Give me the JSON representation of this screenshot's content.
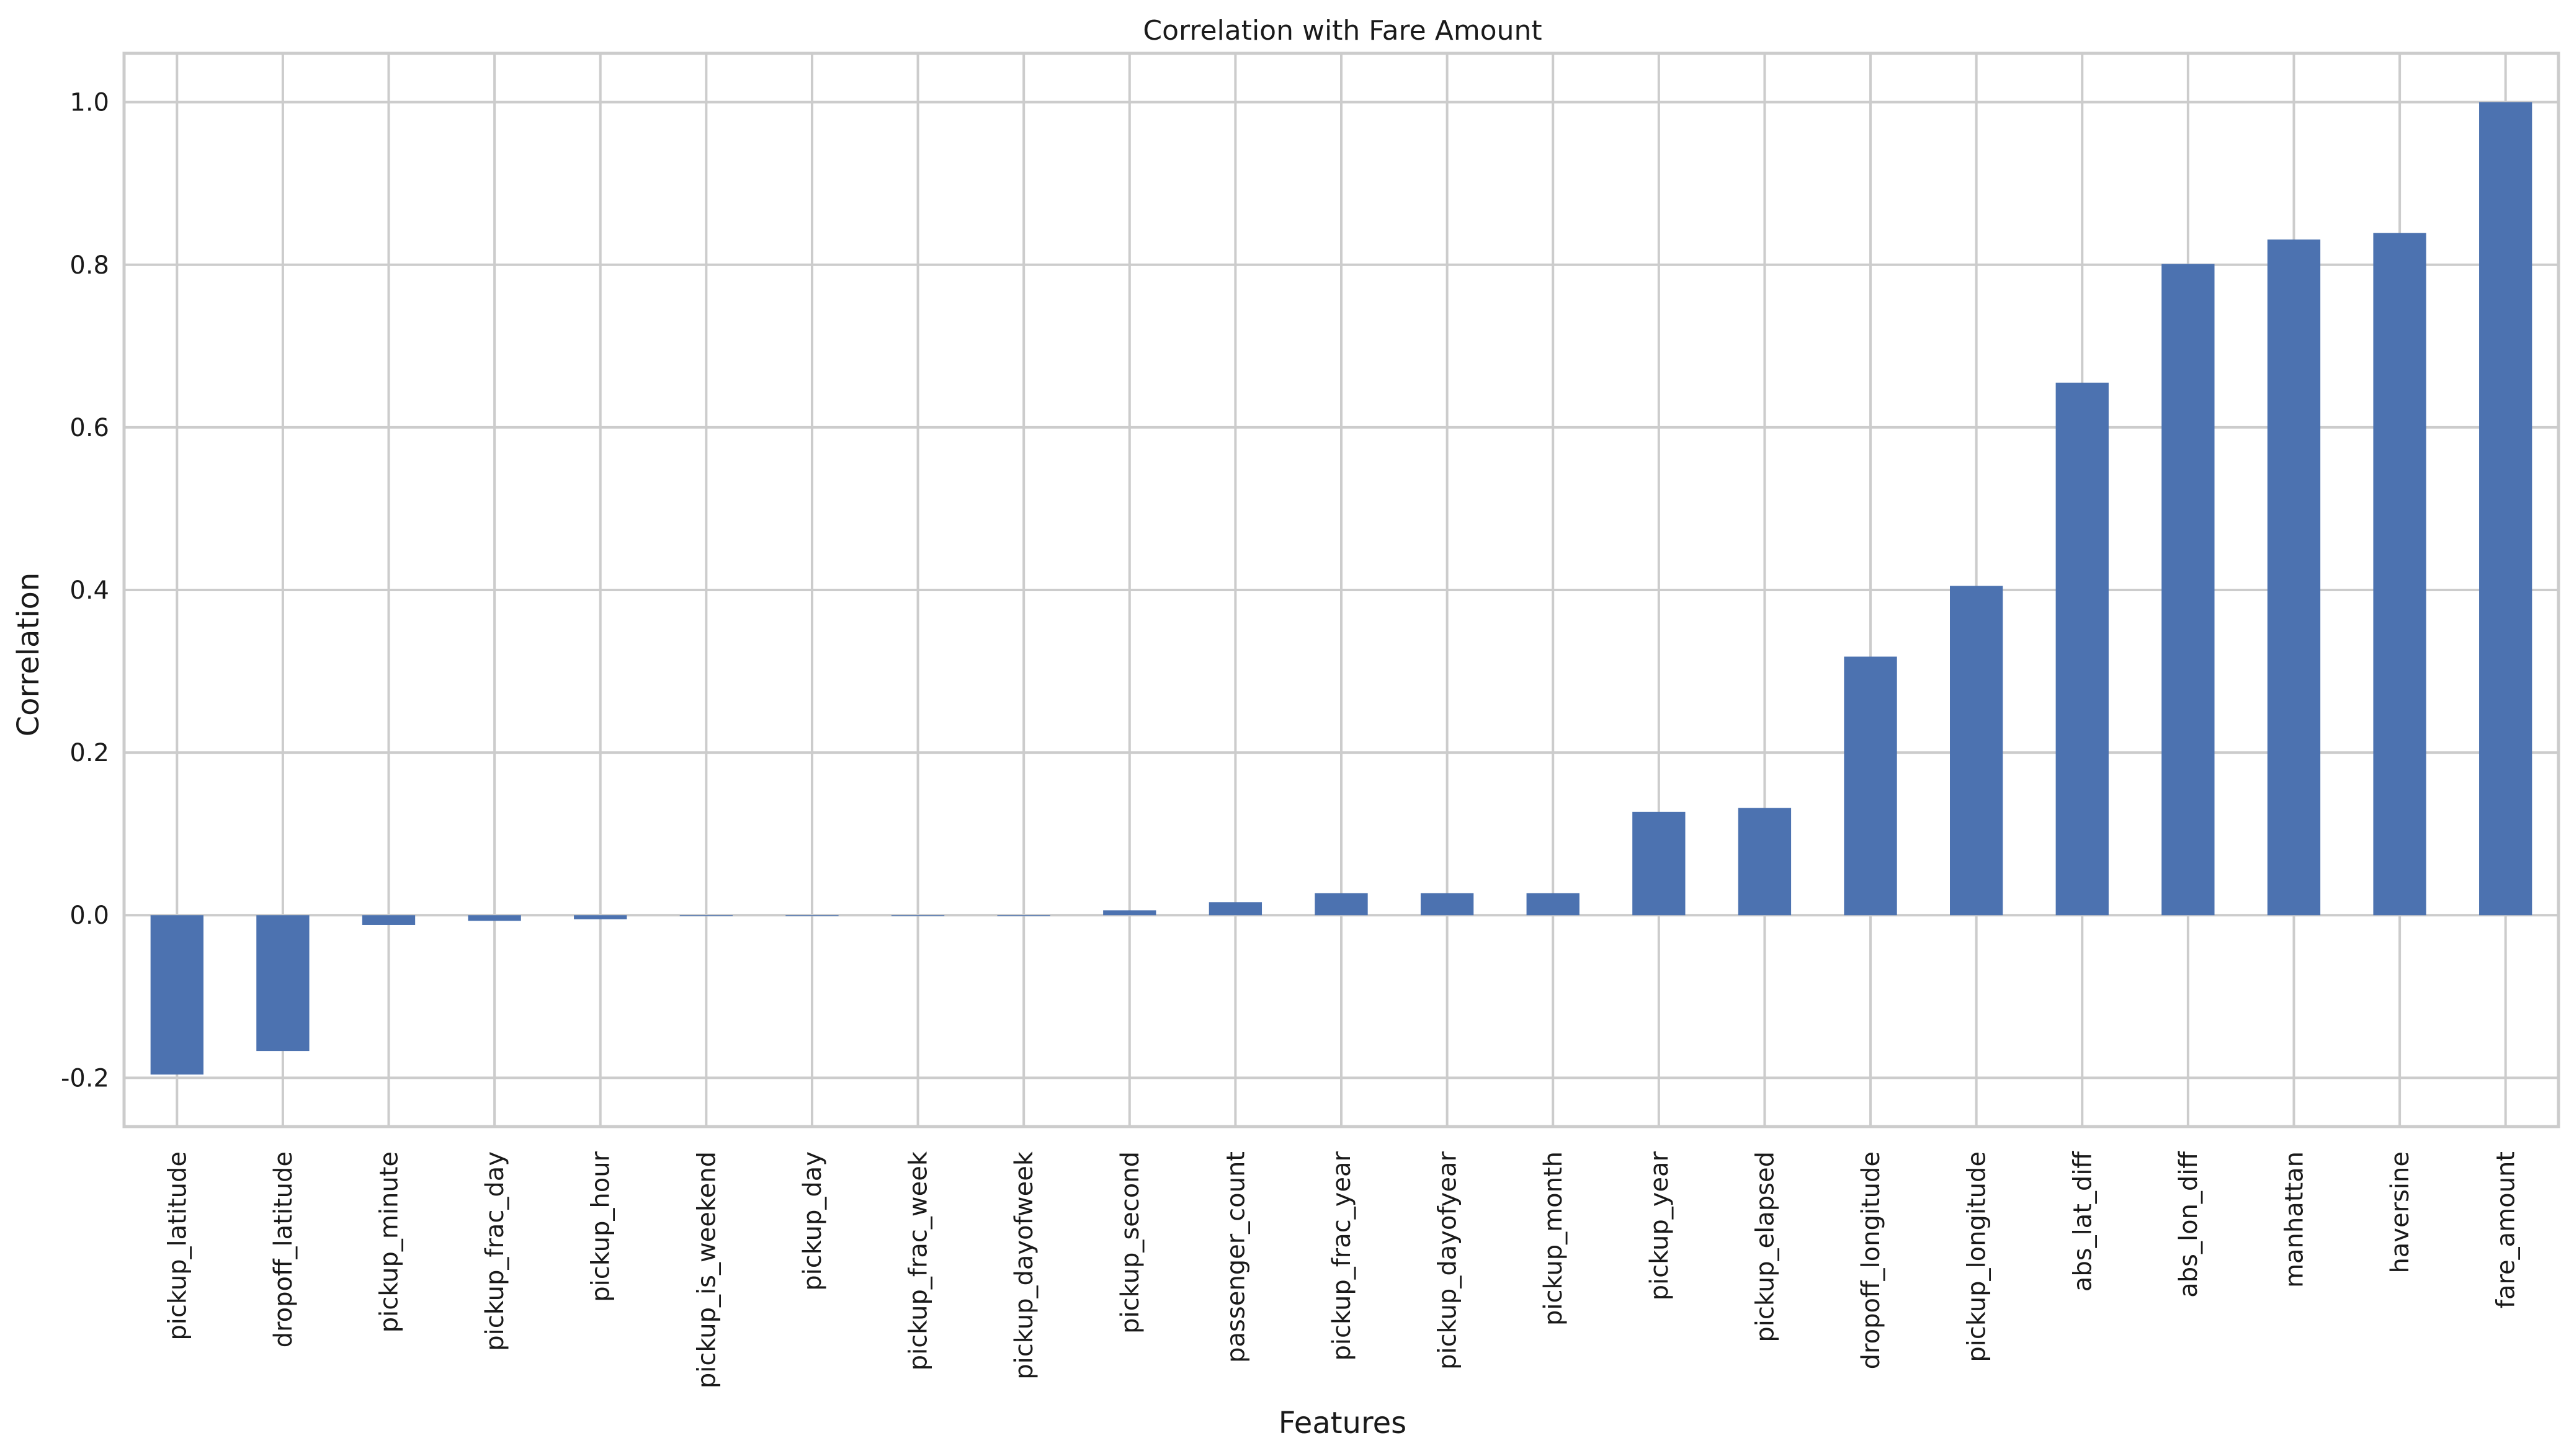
{
  "chart_data": {
    "type": "bar",
    "title": "Correlation with Fare Amount",
    "xlabel": "Features",
    "ylabel": "Correlation",
    "ylim": [
      -0.26,
      1.06
    ],
    "yticks": [
      -0.2,
      0.0,
      0.2,
      0.4,
      0.6,
      0.8,
      1.0
    ],
    "ytick_labels": [
      "-0.2",
      "0.0",
      "0.2",
      "0.4",
      "0.6",
      "0.8",
      "1.0"
    ],
    "grid": true,
    "bar_color": "#4c72b0",
    "categories": [
      "pickup_latitude",
      "dropoff_latitude",
      "pickup_minute",
      "pickup_frac_day",
      "pickup_hour",
      "pickup_is_weekend",
      "pickup_day",
      "pickup_frac_week",
      "pickup_dayofweek",
      "pickup_second",
      "passenger_count",
      "pickup_frac_year",
      "pickup_dayofyear",
      "pickup_month",
      "pickup_year",
      "pickup_elapsed",
      "dropoff_longitude",
      "pickup_longitude",
      "abs_lat_diff",
      "abs_lon_diff",
      "manhattan",
      "haversine",
      "fare_amount"
    ],
    "values": [
      -0.196,
      -0.167,
      -0.012,
      -0.007,
      -0.005,
      -0.001,
      -0.001,
      -0.001,
      -0.001,
      0.006,
      0.016,
      0.027,
      0.027,
      0.027,
      0.127,
      0.132,
      0.318,
      0.405,
      0.655,
      0.801,
      0.831,
      0.839,
      1.0
    ]
  }
}
